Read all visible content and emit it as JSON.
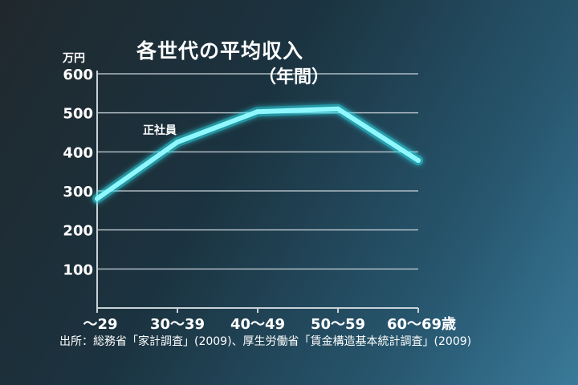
{
  "title": "各世代の平均収入",
  "subtitle": "（年間）",
  "unit_label": "万円",
  "source": "出所：総務省「家計調査」(2009)、厚生労働省「賃金構造基本統計調査」(2009)",
  "colors": {
    "line": "#8ff8ff",
    "glow": "#2ee4f0",
    "grid": "#c8d2d8",
    "text": "#ffffff"
  },
  "chart_data": {
    "type": "line",
    "title": "各世代の平均収入",
    "subtitle": "（年間）",
    "ylabel": "万円",
    "xlabel": "",
    "categories": [
      "〜29",
      "30〜39",
      "40〜49",
      "50〜59",
      "60〜69歳"
    ],
    "series": [
      {
        "name": "正社員",
        "values": [
          280,
          425,
          503,
          510,
          378
        ]
      }
    ],
    "yticks": [
      100,
      200,
      300,
      400,
      500,
      600
    ],
    "ylim": [
      0,
      600
    ],
    "grid": true,
    "legend": "none"
  }
}
